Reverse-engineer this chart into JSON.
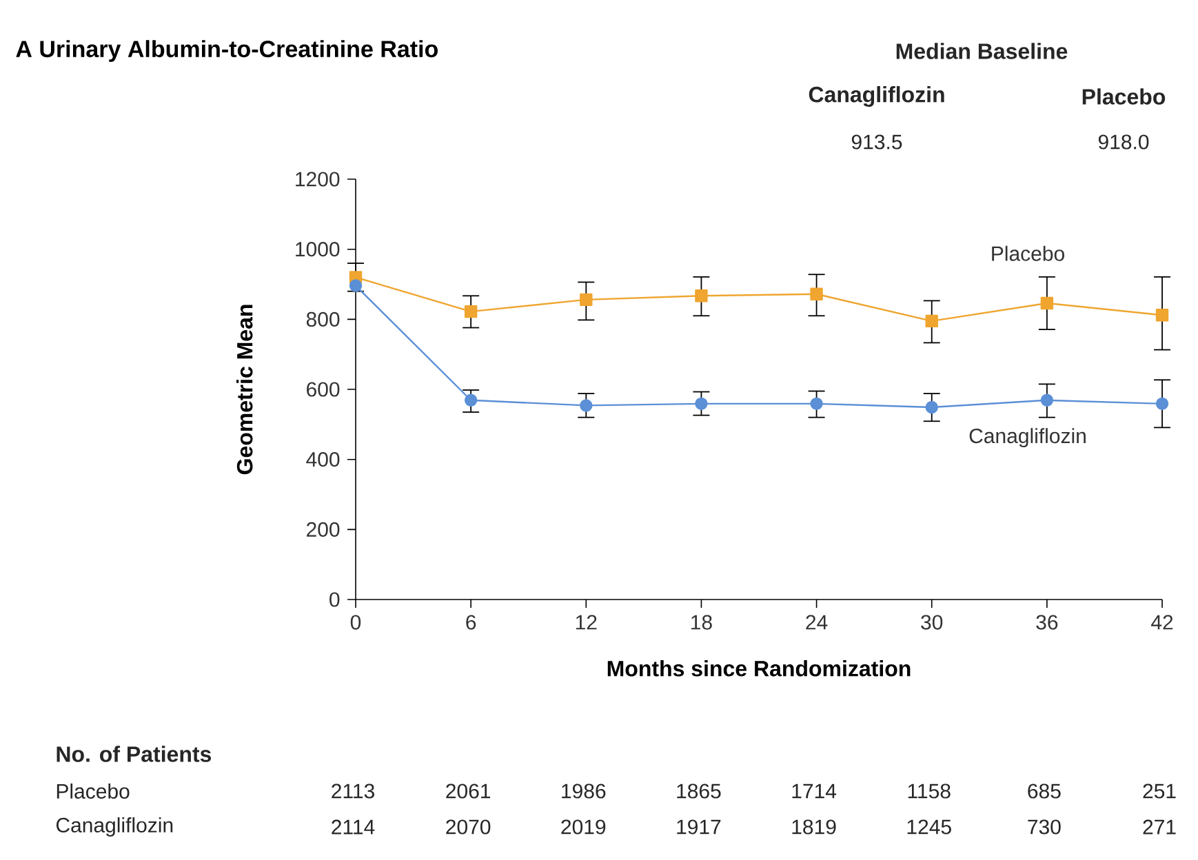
{
  "chart_data": {
    "type": "line",
    "title": "A  Urinary Albumin-to-Creatinine Ratio",
    "xlabel": "Months since Randomization",
    "ylabel": "Geometric Mean",
    "x": [
      0,
      6,
      12,
      18,
      24,
      30,
      36,
      42
    ],
    "xlim": [
      0,
      42
    ],
    "xticks": [
      0,
      6,
      12,
      18,
      24,
      30,
      36,
      42
    ],
    "ylim": [
      0,
      1200
    ],
    "yticks": [
      0,
      200,
      400,
      600,
      800,
      1000,
      1200
    ],
    "series": [
      {
        "name": "Placebo",
        "color": "#efa52f",
        "marker": "square",
        "values": [
          920,
          822,
          856,
          867,
          872,
          795,
          846,
          812
        ],
        "errors": [
          [
            880,
            960
          ],
          [
            776,
            867
          ],
          [
            798,
            906
          ],
          [
            810,
            921
          ],
          [
            810,
            928
          ],
          [
            733,
            853
          ],
          [
            771,
            921
          ],
          [
            713,
            921
          ]
        ]
      },
      {
        "name": "Canagliflozin",
        "color": "#5b8fd6",
        "marker": "circle",
        "values": [
          896,
          569,
          554,
          559,
          559,
          549,
          569,
          559
        ],
        "errors": [
          null,
          [
            535,
            598
          ],
          [
            520,
            588
          ],
          [
            526,
            593
          ],
          [
            520,
            595
          ],
          [
            509,
            588
          ],
          [
            520,
            615
          ],
          [
            491,
            627
          ]
        ]
      }
    ],
    "legend": false,
    "annotations": [
      "Median Baseline",
      "Canagliflozin",
      "Placebo",
      "913.5",
      "918.0",
      "No. of Patients",
      "Placebo",
      "Canagliflozin",
      "2113",
      "2061",
      "1986",
      "1865",
      "1714",
      "1158",
      "685",
      "251",
      "2114",
      "2070",
      "2019",
      "1917",
      "1819",
      "1245",
      "730",
      "271"
    ]
  }
}
